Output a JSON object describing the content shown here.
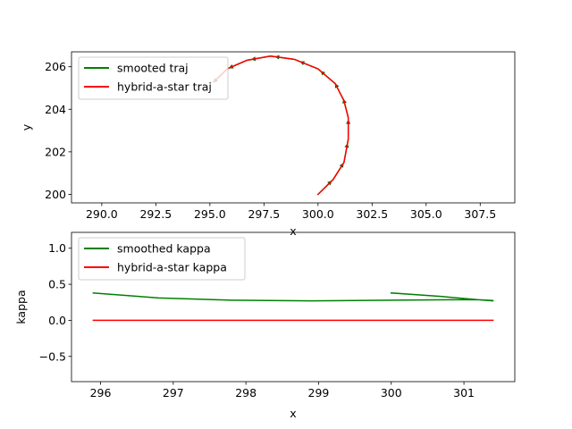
{
  "chart_data": [
    {
      "type": "line",
      "xlabel": "x",
      "ylabel": "y",
      "xlim": [
        288.6,
        309.1
      ],
      "ylim": [
        199.6,
        206.7
      ],
      "xticks": [
        290.0,
        292.5,
        295.0,
        297.5,
        300.0,
        302.5,
        305.0,
        307.5
      ],
      "xtick_labels": [
        "290.0",
        "292.5",
        "295.0",
        "297.5",
        "300.0",
        "302.5",
        "305.0",
        "307.5"
      ],
      "yticks": [
        200,
        202,
        204,
        206
      ],
      "ytick_labels": [
        "200",
        "202",
        "204",
        "206"
      ],
      "legend_position": "upper-left",
      "series": [
        {
          "name": "smooted traj",
          "color": "#008000",
          "x": [
            300.0,
            300.7,
            301.2,
            301.4,
            301.4,
            301.2,
            300.8,
            300.0,
            298.9,
            297.8,
            296.7,
            295.8,
            295.2
          ],
          "y": [
            200.0,
            200.7,
            201.5,
            202.6,
            203.6,
            204.4,
            205.2,
            205.9,
            206.35,
            206.5,
            206.3,
            205.9,
            205.3
          ]
        },
        {
          "name": "hybrid-a-star traj",
          "color": "#ff0000",
          "x": [
            300.0,
            300.7,
            301.2,
            301.4,
            301.4,
            301.2,
            300.8,
            300.0,
            298.9,
            297.8,
            296.7,
            295.8,
            295.2
          ],
          "y": [
            200.0,
            200.7,
            201.5,
            202.6,
            203.6,
            204.4,
            205.2,
            205.9,
            206.35,
            206.5,
            206.3,
            205.9,
            205.3
          ]
        }
      ],
      "heading_arrows": {
        "color": "#006400",
        "x": [
          300.0,
          300.7,
          301.2,
          301.4,
          301.4,
          301.2,
          300.8,
          300.0,
          298.9,
          297.8,
          296.7,
          295.8
        ],
        "y": [
          200.0,
          200.7,
          201.5,
          202.6,
          203.6,
          204.4,
          205.2,
          205.9,
          206.35,
          206.5,
          206.3,
          205.9
        ]
      }
    },
    {
      "type": "line",
      "xlabel": "x",
      "ylabel": "kappa",
      "xlim": [
        295.6,
        301.7
      ],
      "ylim": [
        -0.85,
        1.22
      ],
      "xticks": [
        296,
        297,
        298,
        299,
        300,
        301
      ],
      "xtick_labels": [
        "296",
        "297",
        "298",
        "299",
        "300",
        "301"
      ],
      "yticks": [
        -0.5,
        0.0,
        0.5,
        1.0
      ],
      "ytick_labels": [
        "−0.5",
        "0.0",
        "0.5",
        "1.0"
      ],
      "legend_position": "upper-left",
      "series": [
        {
          "name": "smoothed kappa",
          "color": "#008000",
          "x": [
            300.0,
            300.7,
            301.2,
            301.4,
            301.4,
            301.2,
            300.8,
            300.0,
            298.9,
            297.8,
            296.8,
            295.9
          ],
          "y": [
            0.38,
            0.33,
            0.285,
            0.27,
            0.275,
            0.285,
            0.285,
            0.28,
            0.27,
            0.28,
            0.31,
            0.38
          ]
        },
        {
          "name": "hybrid-a-star kappa",
          "color": "#ff0000",
          "x": [
            295.9,
            301.4
          ],
          "y": [
            0.0,
            0.0
          ]
        }
      ]
    }
  ]
}
